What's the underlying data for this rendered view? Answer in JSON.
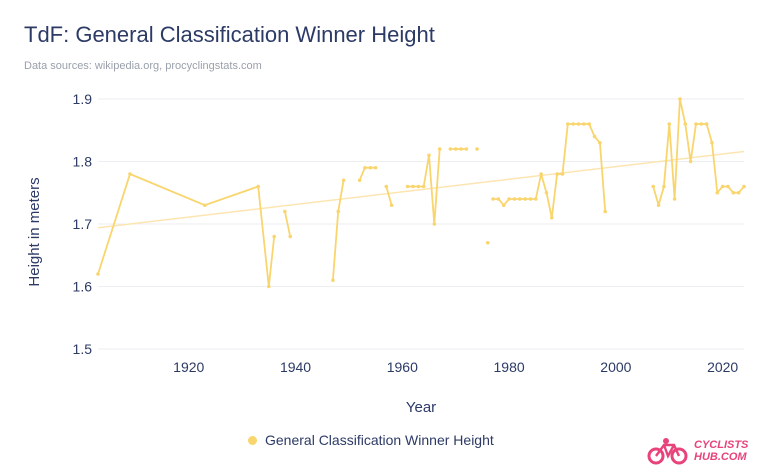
{
  "title": "TdF: General Classification Winner Height",
  "subtitle": "Data sources: wikipedia.org, procyclingstats.com",
  "logo": {
    "line1": "CYCLISTS",
    "line2": "HUB.COM"
  },
  "colors": {
    "series": "#f9d56e",
    "trend": "#fde5b2",
    "grid": "#eceef2",
    "text": "#2c3a66",
    "logo": "#e8437a"
  },
  "chart_data": {
    "type": "line",
    "title": "TdF: General Classification Winner Height",
    "subtitle": "Data sources: wikipedia.org, procyclingstats.com",
    "xlabel": "Year",
    "ylabel": "Height in meters",
    "xlim": [
      1903,
      2024
    ],
    "ylim": [
      1.5,
      1.9
    ],
    "xticks": [
      1920,
      1940,
      1960,
      1980,
      2000,
      2020
    ],
    "yticks": [
      1.5,
      1.6,
      1.7,
      1.8,
      1.9
    ],
    "grid": "horizontal",
    "legend_position": "bottom",
    "series": [
      {
        "name": "General Classification Winner Height",
        "values": [
          [
            1903,
            1.62
          ],
          [
            1909,
            1.78
          ],
          [
            1923,
            1.73
          ],
          [
            1933,
            1.76
          ],
          [
            1935,
            1.6
          ],
          [
            1936,
            1.68
          ],
          null,
          [
            1938,
            1.72
          ],
          [
            1939,
            1.68
          ],
          null,
          [
            1947,
            1.61
          ],
          [
            1948,
            1.72
          ],
          [
            1949,
            1.77
          ],
          null,
          [
            1952,
            1.77
          ],
          [
            1953,
            1.79
          ],
          [
            1954,
            1.79
          ],
          [
            1955,
            1.79
          ],
          null,
          [
            1957,
            1.76
          ],
          [
            1958,
            1.73
          ],
          null,
          [
            1961,
            1.76
          ],
          [
            1962,
            1.76
          ],
          [
            1963,
            1.76
          ],
          [
            1964,
            1.76
          ],
          [
            1965,
            1.81
          ],
          [
            1966,
            1.7
          ],
          [
            1967,
            1.82
          ],
          null,
          [
            1969,
            1.82
          ],
          [
            1970,
            1.82
          ],
          [
            1971,
            1.82
          ],
          [
            1972,
            1.82
          ],
          null,
          [
            1974,
            1.82
          ],
          null,
          [
            1976,
            1.67
          ],
          null,
          [
            1977,
            1.74
          ],
          [
            1978,
            1.74
          ],
          [
            1979,
            1.73
          ],
          [
            1980,
            1.74
          ],
          [
            1981,
            1.74
          ],
          [
            1982,
            1.74
          ],
          [
            1983,
            1.74
          ],
          [
            1984,
            1.74
          ],
          [
            1985,
            1.74
          ],
          [
            1986,
            1.78
          ],
          [
            1987,
            1.75
          ],
          [
            1988,
            1.71
          ],
          [
            1989,
            1.78
          ],
          [
            1990,
            1.78
          ],
          [
            1991,
            1.86
          ],
          [
            1992,
            1.86
          ],
          [
            1993,
            1.86
          ],
          [
            1994,
            1.86
          ],
          [
            1995,
            1.86
          ],
          [
            1996,
            1.84
          ],
          [
            1997,
            1.83
          ],
          [
            1998,
            1.72
          ],
          null,
          [
            2007,
            1.76
          ],
          [
            2008,
            1.73
          ],
          [
            2009,
            1.76
          ],
          [
            2010,
            1.86
          ],
          [
            2011,
            1.74
          ],
          [
            2012,
            1.9
          ],
          [
            2013,
            1.86
          ],
          [
            2014,
            1.8
          ],
          [
            2015,
            1.86
          ],
          [
            2016,
            1.86
          ],
          [
            2017,
            1.86
          ],
          [
            2018,
            1.83
          ],
          [
            2019,
            1.75
          ],
          [
            2020,
            1.76
          ],
          [
            2021,
            1.76
          ],
          [
            2022,
            1.75
          ],
          [
            2023,
            1.75
          ],
          [
            2024,
            1.76
          ]
        ]
      }
    ],
    "trendline": {
      "x": [
        1903,
        2024
      ],
      "y": [
        1.694,
        1.816
      ]
    }
  }
}
